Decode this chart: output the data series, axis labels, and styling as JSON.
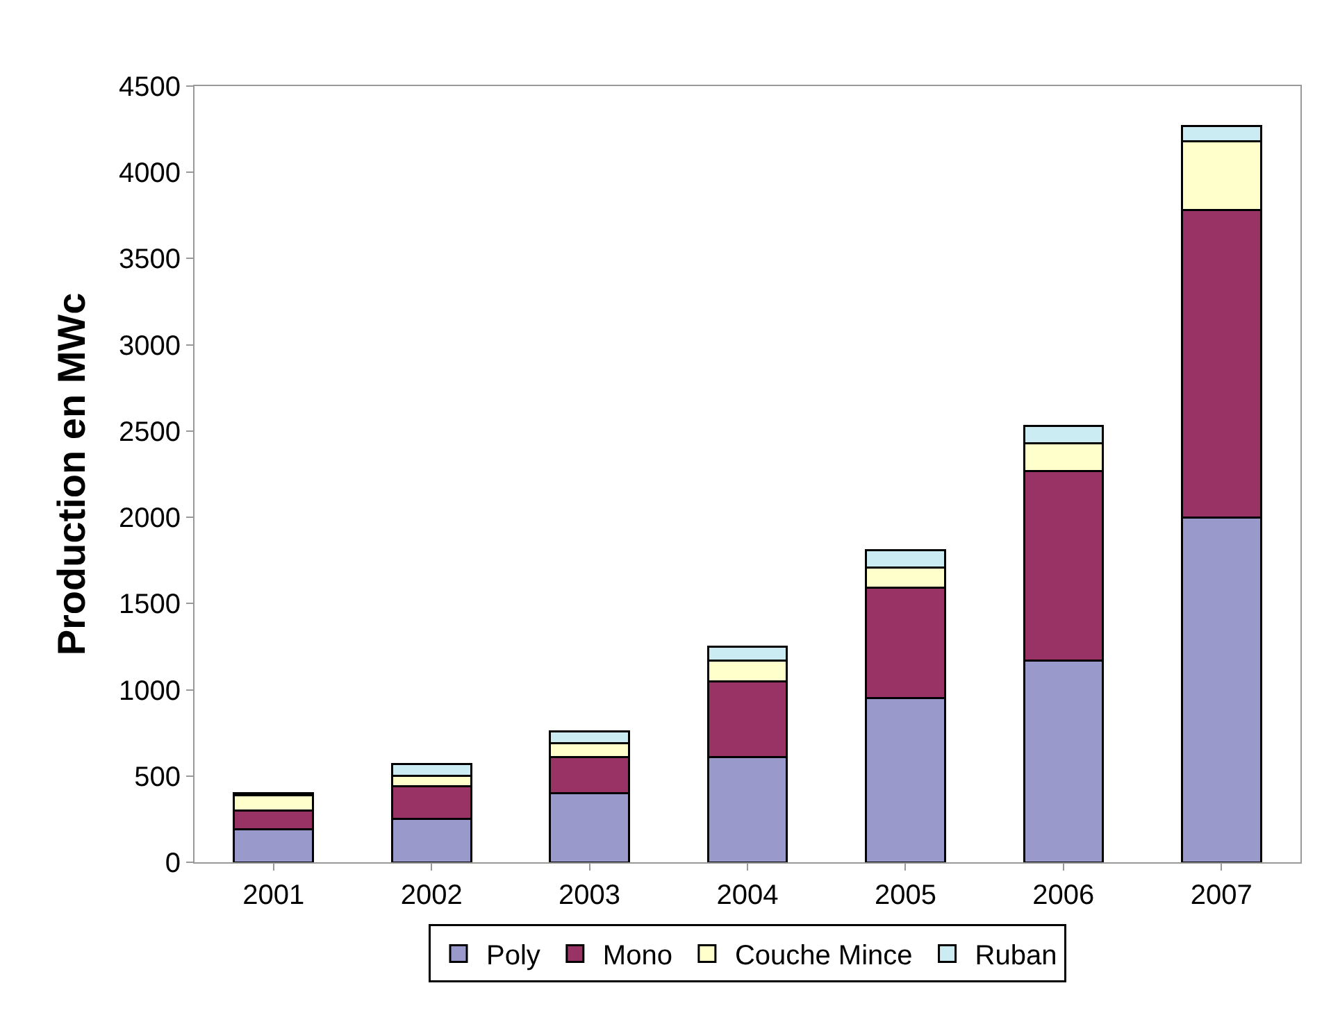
{
  "chart_data": {
    "type": "bar",
    "stacked": true,
    "ylabel": "Production en MWc",
    "categories": [
      "2001",
      "2002",
      "2003",
      "2004",
      "2005",
      "2006",
      "2007"
    ],
    "series": [
      {
        "name": "Poly",
        "color": "#9999cc",
        "values": [
          190,
          250,
          400,
          610,
          950,
          1170,
          2000
        ]
      },
      {
        "name": "Mono",
        "color": "#993366",
        "values": [
          110,
          190,
          210,
          440,
          640,
          1100,
          1780
        ]
      },
      {
        "name": "Couche Mince",
        "color": "#ffffcc",
        "values": [
          90,
          60,
          80,
          120,
          120,
          160,
          400
        ]
      },
      {
        "name": "Ruban",
        "color": "#ccecf4",
        "values": [
          10,
          70,
          70,
          80,
          100,
          100,
          90
        ]
      }
    ],
    "ylim": [
      0,
      4500
    ],
    "yticks": [
      0,
      500,
      1000,
      1500,
      2000,
      2500,
      3000,
      3500,
      4000,
      4500
    ],
    "legend": "bottom"
  }
}
